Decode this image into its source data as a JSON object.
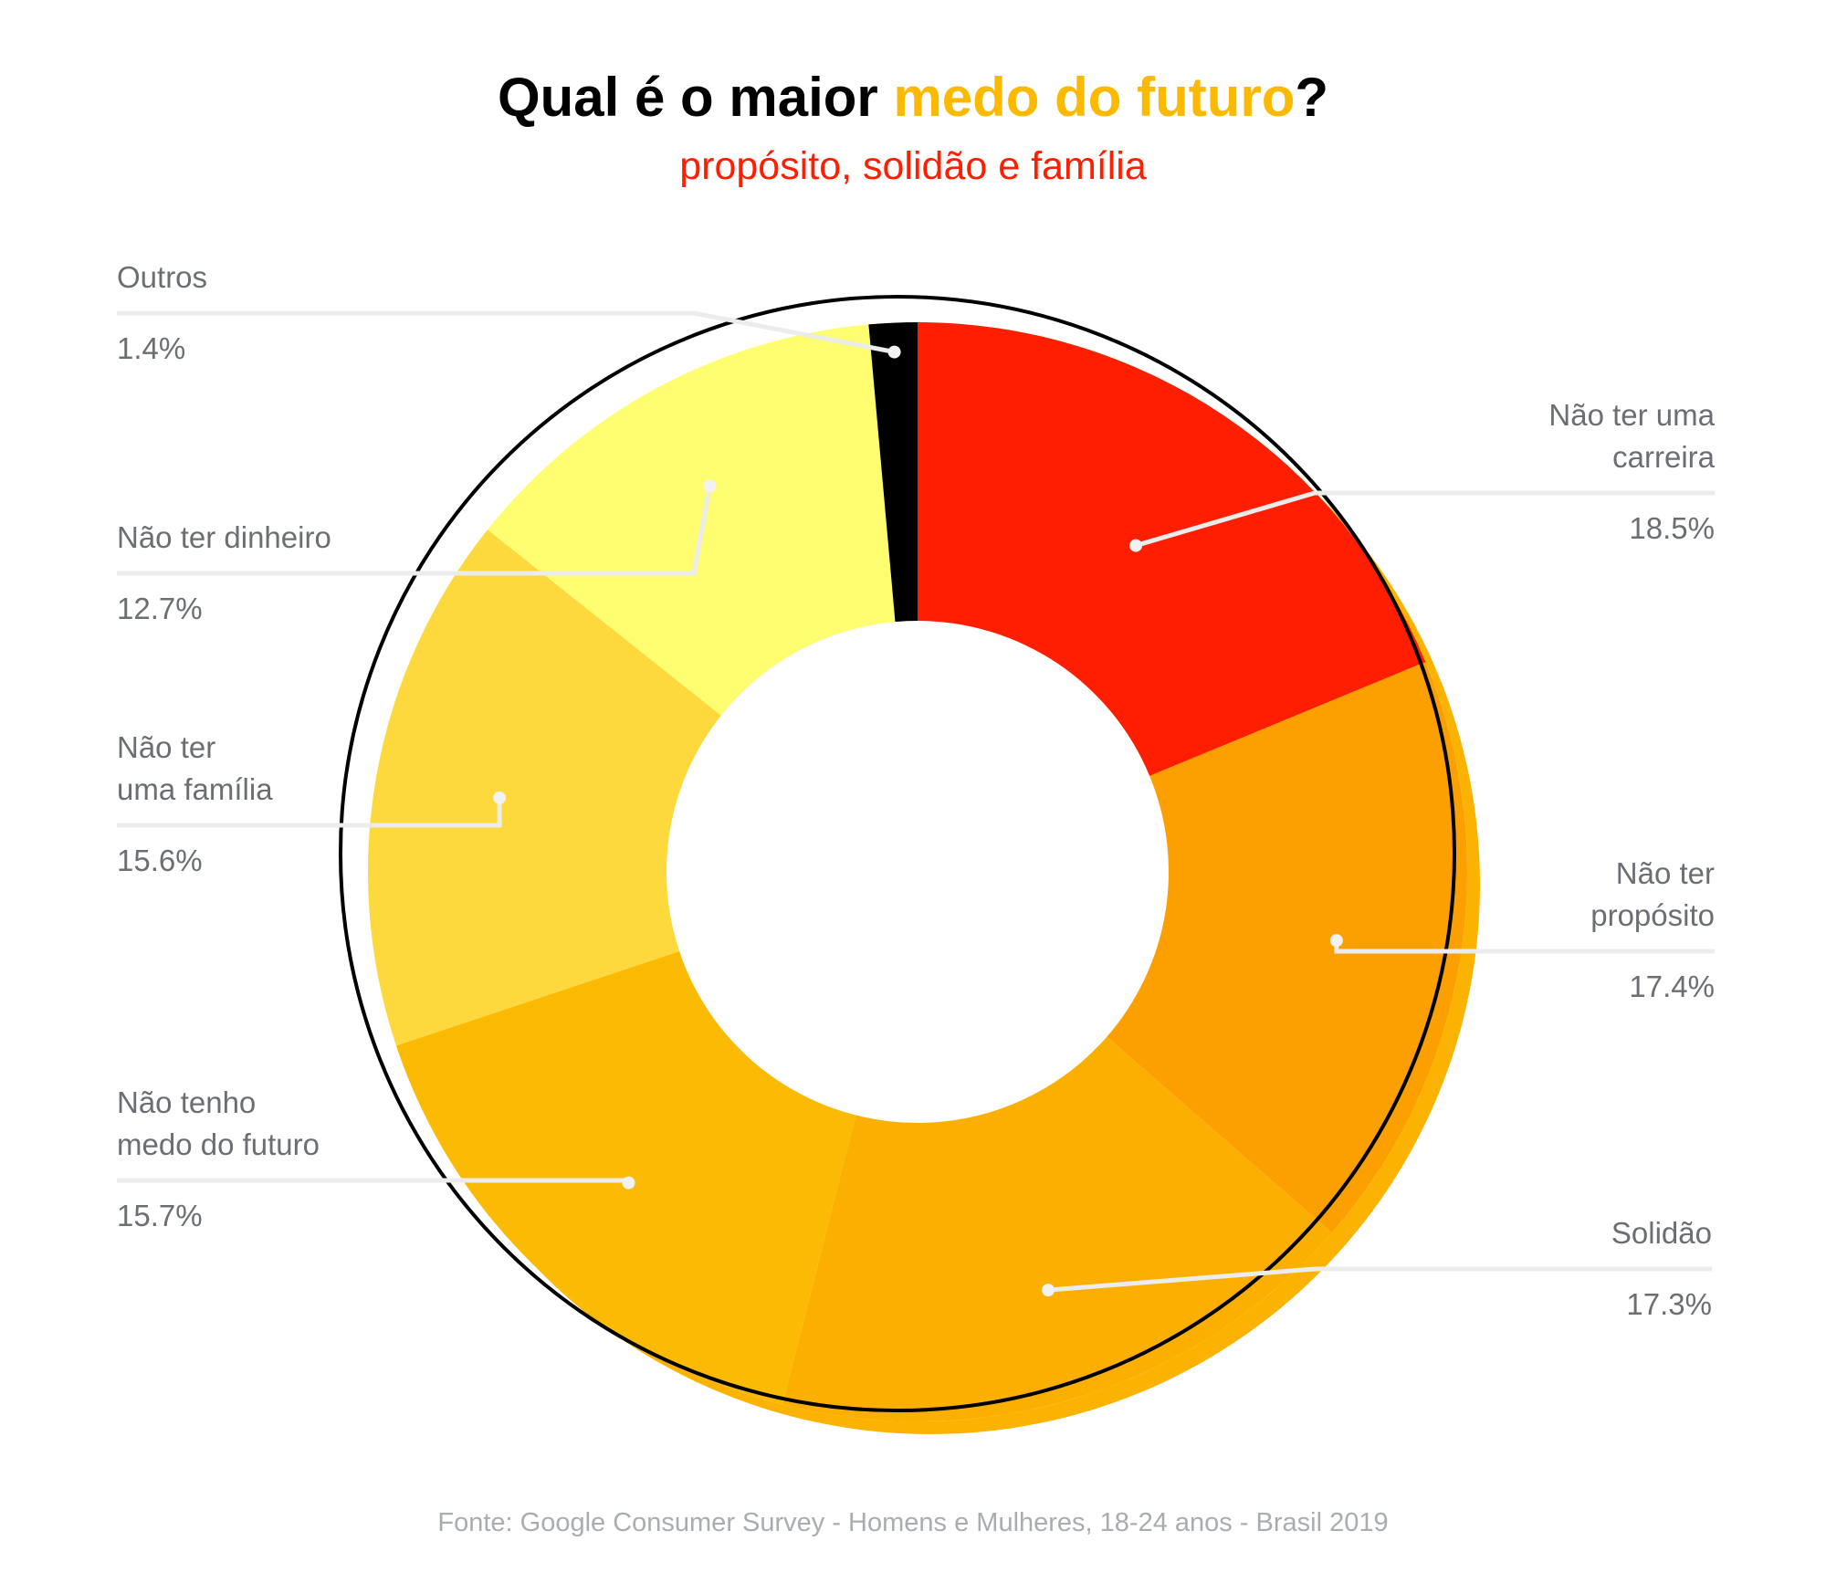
{
  "title": {
    "part1": "Qual é o maior ",
    "highlight": "medo do futuro",
    "part2": "?"
  },
  "subtitle": "propósito, solidão e família",
  "source": "Fonte: Google Consumer Survey - Homens e Mulheres, 18-24 anos - Brasil 2019",
  "colors": {
    "title": "#000000",
    "title_highlight": "#fbb900",
    "subtitle": "#ff1e00",
    "label_text": "#6b6e73",
    "source_text": "#a9acb0",
    "ring_shadow": "#fbb200",
    "outline": "#000000"
  },
  "chart_data": {
    "type": "pie",
    "style": "donut",
    "title": "Qual é o maior medo do futuro?",
    "subtitle": "propósito, solidão e família",
    "slices": [
      {
        "label": "Não ter uma carreira",
        "label_lines": [
          "Não ter uma",
          "carreira"
        ],
        "value": 18.5,
        "display": "18.5%",
        "color": "#ff1e00"
      },
      {
        "label": "Não ter propósito",
        "label_lines": [
          "Não ter",
          "propósito"
        ],
        "value": 17.4,
        "display": "17.4%",
        "color": "#fba000"
      },
      {
        "label": "Solidão",
        "label_lines": [
          "Solidão"
        ],
        "value": 17.3,
        "display": "17.3%",
        "color": "#fbaf00"
      },
      {
        "label": "Não tenho medo do futuro",
        "label_lines": [
          "Não tenho",
          "medo do futuro"
        ],
        "value": 15.7,
        "display": "15.7%",
        "color": "#fbbb05"
      },
      {
        "label": "Não ter uma família",
        "label_lines": [
          "Não ter",
          "uma família"
        ],
        "value": 15.6,
        "display": "15.6%",
        "color": "#fdd93d"
      },
      {
        "label": "Não ter dinheiro",
        "label_lines": [
          "Não ter dinheiro"
        ],
        "value": 12.7,
        "display": "12.7%",
        "color": "#fffd70"
      },
      {
        "label": "Outros",
        "label_lines": [
          "Outros"
        ],
        "value": 1.4,
        "display": "1.4%",
        "color": "#000000"
      }
    ]
  }
}
